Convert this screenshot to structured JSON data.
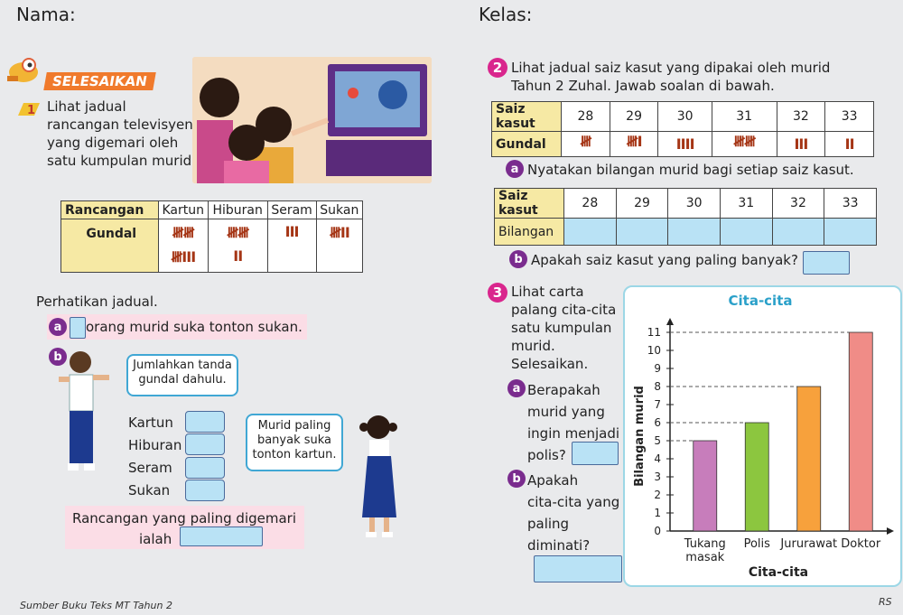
{
  "header": {
    "nama": "Nama:",
    "kelas": "Kelas:"
  },
  "badge": "SELESAIKAN",
  "q1": {
    "number": "1",
    "text_lines": [
      "Lihat jadual",
      "rancangan televisyen",
      "yang digemari oleh",
      "satu kumpulan murid."
    ],
    "table": {
      "head_label": "Rancangan",
      "row_label": "Gundal",
      "columns": [
        "Kartun",
        "Hiburan",
        "Seram",
        "Sukan"
      ],
      "tallies": [
        [
          "𝍸𝍸",
          "𝍸III"
        ],
        [
          "𝍸𝍸",
          "II"
        ],
        [
          "III"
        ],
        [
          "𝍸II"
        ]
      ]
    },
    "perhatikan": "Perhatikan jadual.",
    "a_letter": "a",
    "a_text": "orang murid suka tonton sukan.",
    "b_letter": "b",
    "bubble1": [
      "Jumlahkan tanda",
      "gundal dahulu."
    ],
    "bubble2": [
      "Murid paling",
      "banyak suka",
      "tonton kartun."
    ],
    "list": [
      "Kartun",
      "Hiburan",
      "Seram",
      "Sukan"
    ],
    "conclusion_line1": "Rancangan yang paling digemari",
    "conclusion_line2": "ialah"
  },
  "q2": {
    "number": "2",
    "text_lines": [
      "Lihat jadual saiz kasut yang dipakai oleh murid",
      "Tahun 2 Zuhal. Jawab soalan di bawah."
    ],
    "table1": {
      "head_label": "Saiz kasut",
      "row_label": "Gundal",
      "sizes": [
        "28",
        "29",
        "30",
        "31",
        "32",
        "33"
      ],
      "tallies": [
        "𝍸",
        "𝍸I",
        "IIII",
        "𝍸𝍸",
        "III",
        "II"
      ]
    },
    "a_letter": "a",
    "a_text": "Nyatakan bilangan murid bagi setiap saiz kasut.",
    "table2": {
      "head_label": "Saiz kasut",
      "row_label": "Bilangan",
      "sizes": [
        "28",
        "29",
        "30",
        "31",
        "32",
        "33"
      ]
    },
    "b_letter": "b",
    "b_text": "Apakah saiz kasut yang paling banyak?"
  },
  "q3": {
    "number": "3",
    "text_lines": [
      "Lihat carta",
      "palang cita-cita",
      "satu kumpulan",
      "murid.",
      "Selesaikan."
    ],
    "a_letter": "a",
    "a_lines": [
      "Berapakah",
      "murid yang",
      "ingin menjadi",
      "polis?"
    ],
    "b_letter": "b",
    "b_lines": [
      "Apakah",
      "cita-cita yang",
      "paling",
      "diminati?"
    ]
  },
  "chart_data": {
    "type": "bar",
    "title": "Cita-cita",
    "xlabel": "Cita-cita",
    "ylabel": "Bilangan murid",
    "categories": [
      "Tukang masak",
      "Polis",
      "Jururawat",
      "Doktor"
    ],
    "category_lines": [
      [
        "Tukang",
        "masak"
      ],
      [
        "Polis"
      ],
      [
        "Jururawat"
      ],
      [
        "Doktor"
      ]
    ],
    "values": [
      5,
      6,
      8,
      11
    ],
    "colors": [
      "#c77dbb",
      "#8cc63f",
      "#f7a13c",
      "#f08c87"
    ],
    "ylim": [
      0,
      11
    ],
    "yticks": [
      "0",
      "1",
      "2",
      "3",
      "4",
      "5",
      "6",
      "7",
      "8",
      "9",
      "10",
      "11"
    ],
    "grid": false
  },
  "footer": {
    "source": "Sumber Buku Teks MT Tahun 2",
    "initials": "RS"
  }
}
